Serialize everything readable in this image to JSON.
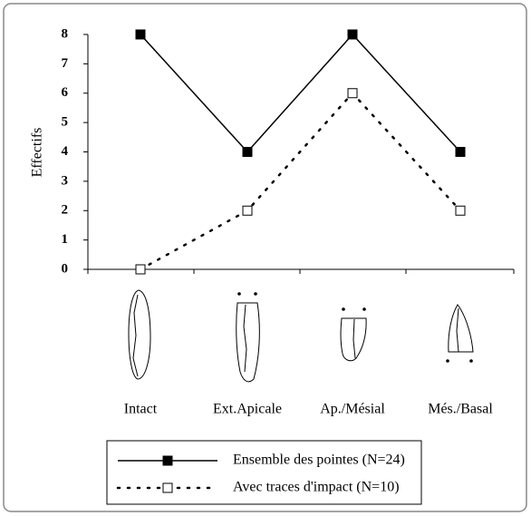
{
  "chart_data": {
    "type": "line",
    "y_label": "Effectifs",
    "categories": [
      "Intact",
      "Ext.Apicale",
      "Ap./Mésial",
      "Més./Basal"
    ],
    "series": [
      {
        "name": "Ensemble des pointes (N=24)",
        "color": "#000000",
        "line_style": "solid",
        "marker": "filled-square",
        "values": [
          8,
          4,
          8,
          4
        ]
      },
      {
        "name": "Avec traces d'impact (N=10)",
        "color": "#000000",
        "line_style": "dotted",
        "marker": "open-square",
        "values": [
          0,
          2,
          6,
          2
        ]
      }
    ],
    "ylim": [
      0,
      8
    ],
    "yticks": [
      0,
      1,
      2,
      3,
      4,
      5,
      6,
      7,
      8
    ],
    "grid": false,
    "legend": "bottom"
  }
}
